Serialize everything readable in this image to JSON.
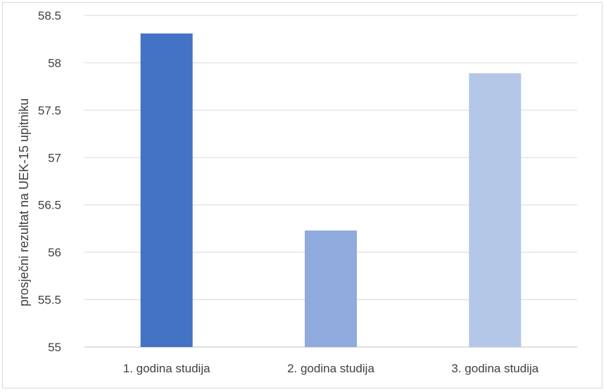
{
  "chart_data": {
    "type": "bar",
    "categories": [
      "1. godina studija",
      "2. godina studija",
      "3. godina studija"
    ],
    "values": [
      58.31,
      56.23,
      57.89
    ],
    "colors": [
      "#4472c4",
      "#8faadc",
      "#b4c7e7"
    ],
    "xlabel": "",
    "ylabel": "prosječni rezultat na UEK-15 upitniku",
    "ylim": [
      55,
      58.5
    ],
    "yticks": [
      55,
      55.5,
      56,
      56.5,
      57,
      57.5,
      58,
      58.5
    ],
    "ytick_labels": [
      "55",
      "55.5",
      "56",
      "56.5",
      "57",
      "57.5",
      "58",
      "58.5"
    ],
    "grid": true,
    "legend": "none",
    "gridline_color": "#d9d9d9",
    "axis_color": "#bfbfbf"
  }
}
